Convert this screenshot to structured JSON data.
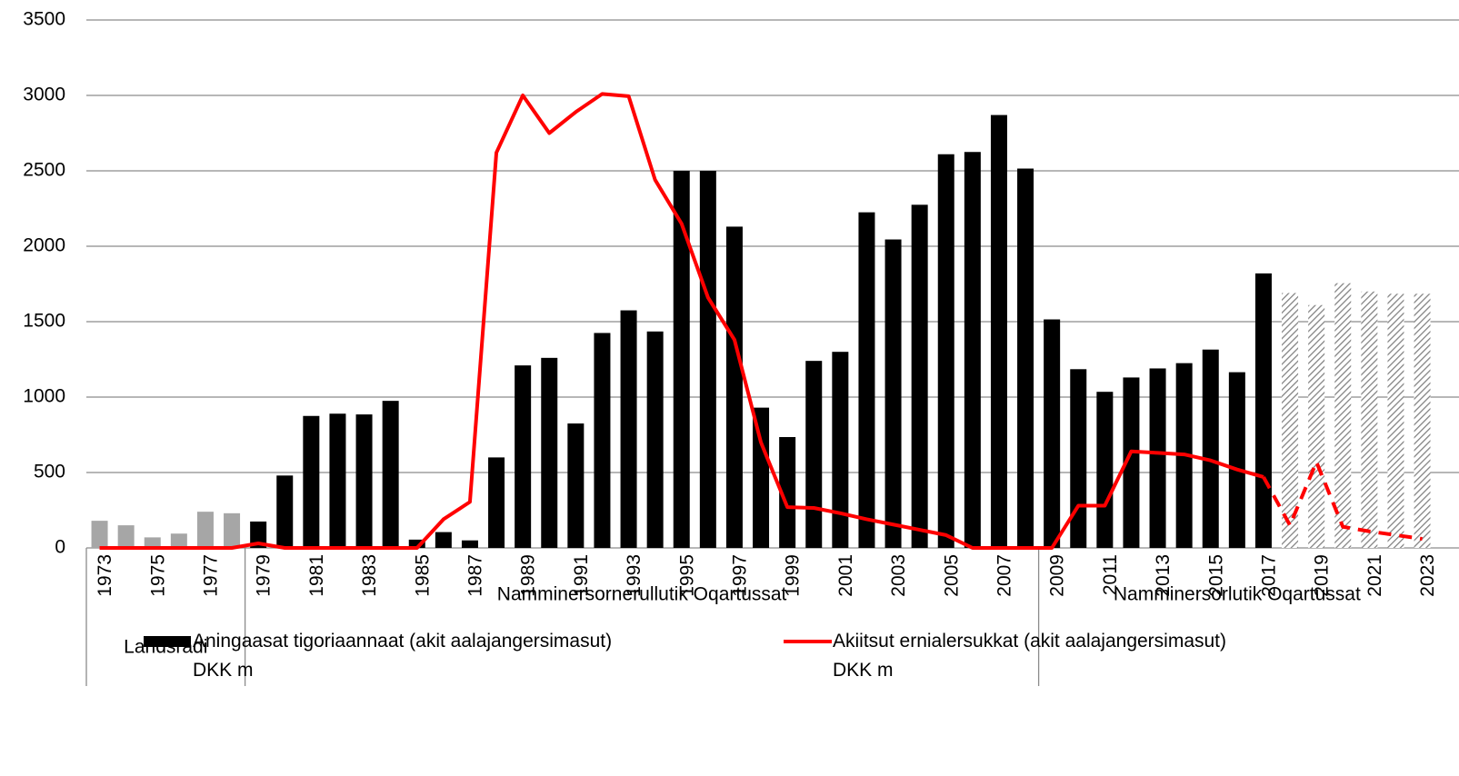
{
  "chart_data": {
    "type": "combo",
    "categories": [
      "1973",
      null,
      "1975",
      null,
      "1977",
      null,
      "1979",
      null,
      "1981",
      null,
      "1983",
      null,
      "1985",
      null,
      "1987",
      null,
      "1989",
      null,
      "1991",
      null,
      "1993",
      null,
      "1995",
      null,
      "1997",
      null,
      "1999",
      null,
      "2001",
      null,
      "2003",
      null,
      "2005",
      null,
      "2007",
      null,
      "2009",
      null,
      "2011",
      null,
      "2013",
      null,
      "2015",
      null,
      "2017",
      null,
      "2019",
      null,
      "2021",
      null,
      "2023"
    ],
    "series": [
      {
        "name": "Aningaasat tigoriaannaat (akit aalajangersimasut)\nDKK m",
        "type": "bar",
        "color": "#000000",
        "colors": [
          "#a6a6a6",
          "#a6a6a6",
          "#a6a6a6",
          "#a6a6a6",
          "#a6a6a6",
          "#a6a6a6",
          "#000000",
          "#000000",
          "#000000",
          "#000000",
          "#000000",
          "#000000",
          "#000000",
          "#000000",
          "#000000",
          "#000000",
          "#000000",
          "#000000",
          "#000000",
          "#000000",
          "#000000",
          "#000000",
          "#000000",
          "#000000",
          "#000000",
          "#000000",
          "#000000",
          "#000000",
          "#000000",
          "#000000",
          "#000000",
          "#000000",
          "#000000",
          "#000000",
          "#000000",
          "#000000",
          "#000000",
          "#000000",
          "#000000",
          "#000000",
          "#000000",
          "#000000",
          "#000000",
          "#000000",
          "#000000",
          "hatch",
          "hatch",
          "hatch",
          "hatch",
          "hatch",
          "hatch"
        ],
        "values": [
          180,
          150,
          70,
          95,
          240,
          230,
          175,
          480,
          875,
          890,
          885,
          975,
          55,
          105,
          50,
          600,
          1210,
          1260,
          825,
          1425,
          1575,
          1435,
          2500,
          2500,
          2130,
          930,
          735,
          1240,
          1300,
          2225,
          2045,
          2275,
          2610,
          2625,
          2870,
          2515,
          1515,
          1185,
          1035,
          1130,
          1190,
          1225,
          1315,
          1165,
          1820,
          1690,
          1610,
          1755,
          1700,
          1685,
          1685
        ]
      },
      {
        "name": "Akiitsut ernialersukkat (akit aalajangersimasut)\nDKK m",
        "type": "line",
        "color": "#ff0000",
        "dashed_from": 44,
        "values": [
          0,
          0,
          0,
          0,
          0,
          0,
          30,
          0,
          0,
          0,
          0,
          0,
          0,
          190,
          305,
          2620,
          3000,
          2750,
          2890,
          3010,
          2995,
          2440,
          2150,
          1660,
          1380,
          700,
          270,
          265,
          230,
          190,
          155,
          120,
          85,
          0,
          0,
          0,
          0,
          280,
          280,
          640,
          630,
          620,
          580,
          520,
          470,
          150,
          570,
          140,
          110,
          85,
          60
        ]
      }
    ],
    "groups": [
      {
        "label": "Landsrådi",
        "start": 0,
        "end": 5
      },
      {
        "label": "Namminersornerullutik Oqartussat",
        "start": 6,
        "end": 35
      },
      {
        "label": "Namminersorlutik Oqartussat",
        "start": 36,
        "end": 50
      }
    ],
    "ylim": [
      0,
      3500
    ],
    "yticks": [
      0,
      500,
      1000,
      1500,
      2000,
      2500,
      3000,
      3500
    ],
    "grid": true
  }
}
